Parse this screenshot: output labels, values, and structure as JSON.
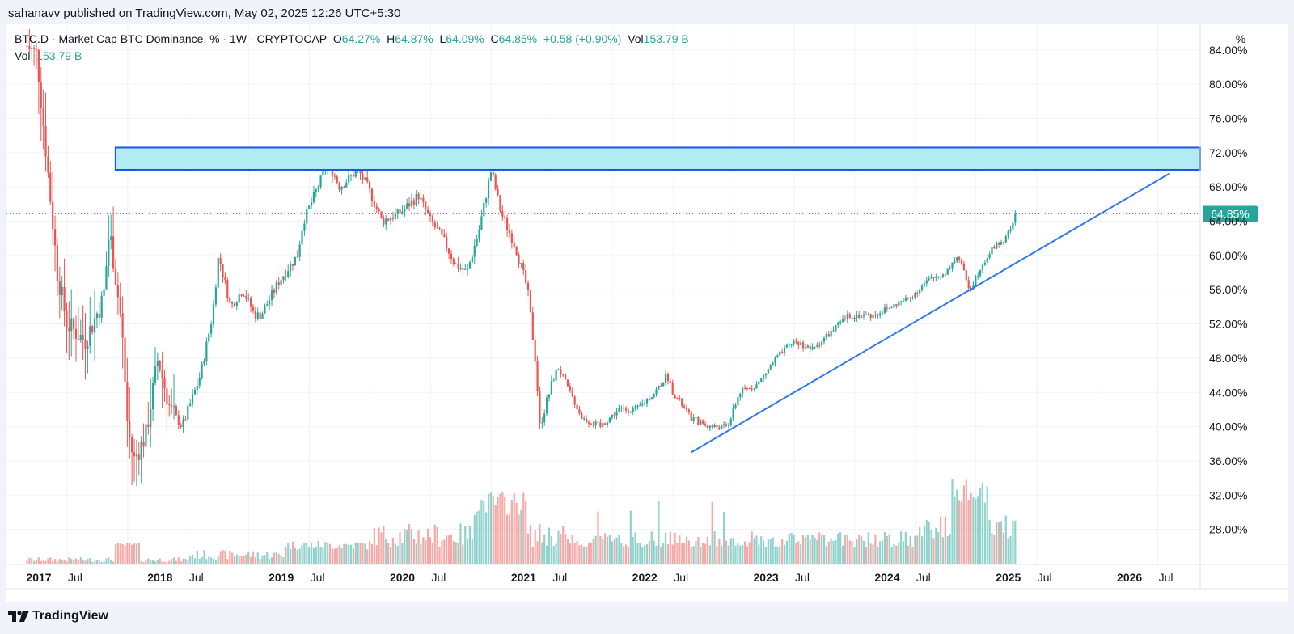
{
  "header": {
    "publisher": "sahanavv published on TradingView.com, May 02, 2025 12:26 UTC+5:30"
  },
  "legend": {
    "symbol": "BTC.D · Market Cap BTC Dominance, % · 1W · CRYPTOCAP",
    "o_label": "O",
    "o_value": "64.27%",
    "h_label": "H",
    "h_value": "64.87%",
    "l_label": "L",
    "l_value": "64.09%",
    "c_label": "C",
    "c_value": "64.85%",
    "change": "+0.58 (+0.90%)",
    "vol_label": "Vol",
    "vol_value": "153.79 B"
  },
  "legend2": {
    "vol_label": "Vol",
    "vol_value": "153.79 B"
  },
  "scale_button": "%",
  "price_tag": "64.85%",
  "footer": {
    "brand": "TradingView"
  },
  "colors": {
    "up": "#26a69a",
    "down": "#ef5350",
    "zone_fill": "#b2ebf2",
    "zone_border": "#1e53e5",
    "trendline": "#2f7bec"
  },
  "chart_data": {
    "type": "candlestick",
    "title": "BTC.D · Market Cap BTC Dominance, % · 1W · CRYPTOCAP",
    "y_unit": "%",
    "ylim": [
      24,
      87
    ],
    "y_ticks": [
      "84.00%",
      "80.00%",
      "76.00%",
      "72.00%",
      "68.00%",
      "64.00%",
      "60.00%",
      "56.00%",
      "52.00%",
      "48.00%",
      "44.00%",
      "40.00%",
      "36.00%",
      "32.00%",
      "28.00%"
    ],
    "x_ticks": [
      "2017",
      "Jul",
      "2018",
      "Jul",
      "2019",
      "Jul",
      "2020",
      "Jul",
      "2021",
      "Jul",
      "2022",
      "Jul",
      "2023",
      "Jul",
      "2024",
      "Jul",
      "2025",
      "Jul",
      "2026",
      "Jul"
    ],
    "x_range": [
      2017.0,
      2026.85
    ],
    "last_close": 64.85,
    "price_path": [
      [
        2017.0,
        86.5
      ],
      [
        2017.25,
        83.5
      ],
      [
        2017.42,
        58
      ],
      [
        2017.5,
        52
      ],
      [
        2017.65,
        50
      ],
      [
        2017.8,
        55
      ],
      [
        2017.85,
        63
      ],
      [
        2017.95,
        52
      ],
      [
        2018.0,
        40
      ],
      [
        2018.05,
        36
      ],
      [
        2018.15,
        39
      ],
      [
        2018.25,
        48
      ],
      [
        2018.35,
        42
      ],
      [
        2018.45,
        40
      ],
      [
        2018.6,
        46
      ],
      [
        2018.7,
        53
      ],
      [
        2018.75,
        60
      ],
      [
        2018.85,
        54
      ],
      [
        2018.95,
        56
      ],
      [
        2019.05,
        53
      ],
      [
        2019.1,
        53
      ],
      [
        2019.25,
        57
      ],
      [
        2019.4,
        60
      ],
      [
        2019.45,
        64
      ],
      [
        2019.6,
        69
      ],
      [
        2019.65,
        71
      ],
      [
        2019.75,
        68
      ],
      [
        2019.9,
        70
      ],
      [
        2019.98,
        68
      ],
      [
        2020.1,
        64
      ],
      [
        2020.25,
        65
      ],
      [
        2020.4,
        67
      ],
      [
        2020.5,
        64
      ],
      [
        2020.6,
        62
      ],
      [
        2020.7,
        59
      ],
      [
        2020.8,
        58
      ],
      [
        2020.9,
        63
      ],
      [
        2021.0,
        70
      ],
      [
        2021.08,
        65
      ],
      [
        2021.2,
        61
      ],
      [
        2021.3,
        56
      ],
      [
        2021.37,
        47
      ],
      [
        2021.4,
        40
      ],
      [
        2021.5,
        45
      ],
      [
        2021.55,
        47
      ],
      [
        2021.65,
        44
      ],
      [
        2021.75,
        41
      ],
      [
        2021.9,
        40
      ],
      [
        2022.05,
        42
      ],
      [
        2022.2,
        42
      ],
      [
        2022.35,
        44
      ],
      [
        2022.45,
        46
      ],
      [
        2022.5,
        44
      ],
      [
        2022.65,
        41
      ],
      [
        2022.8,
        40
      ],
      [
        2022.95,
        40
      ],
      [
        2023.05,
        44
      ],
      [
        2023.2,
        45
      ],
      [
        2023.35,
        48
      ],
      [
        2023.5,
        50
      ],
      [
        2023.65,
        49
      ],
      [
        2023.8,
        51
      ],
      [
        2023.95,
        53
      ],
      [
        2024.15,
        53
      ],
      [
        2024.3,
        54
      ],
      [
        2024.45,
        55
      ],
      [
        2024.6,
        57
      ],
      [
        2024.75,
        58
      ],
      [
        2024.85,
        60
      ],
      [
        2024.95,
        56
      ],
      [
        2025.05,
        59
      ],
      [
        2025.15,
        61
      ],
      [
        2025.25,
        62
      ],
      [
        2025.33,
        64.85
      ]
    ],
    "volume_scale": "relative",
    "annotations": [
      {
        "type": "zone",
        "y_range": [
          70.0,
          72.6
        ],
        "x_start": 2017.8,
        "x_end": 2026.85
      },
      {
        "type": "trendline",
        "from": [
          2022.65,
          37.0
        ],
        "to": [
          2026.6,
          69.6
        ]
      }
    ]
  }
}
